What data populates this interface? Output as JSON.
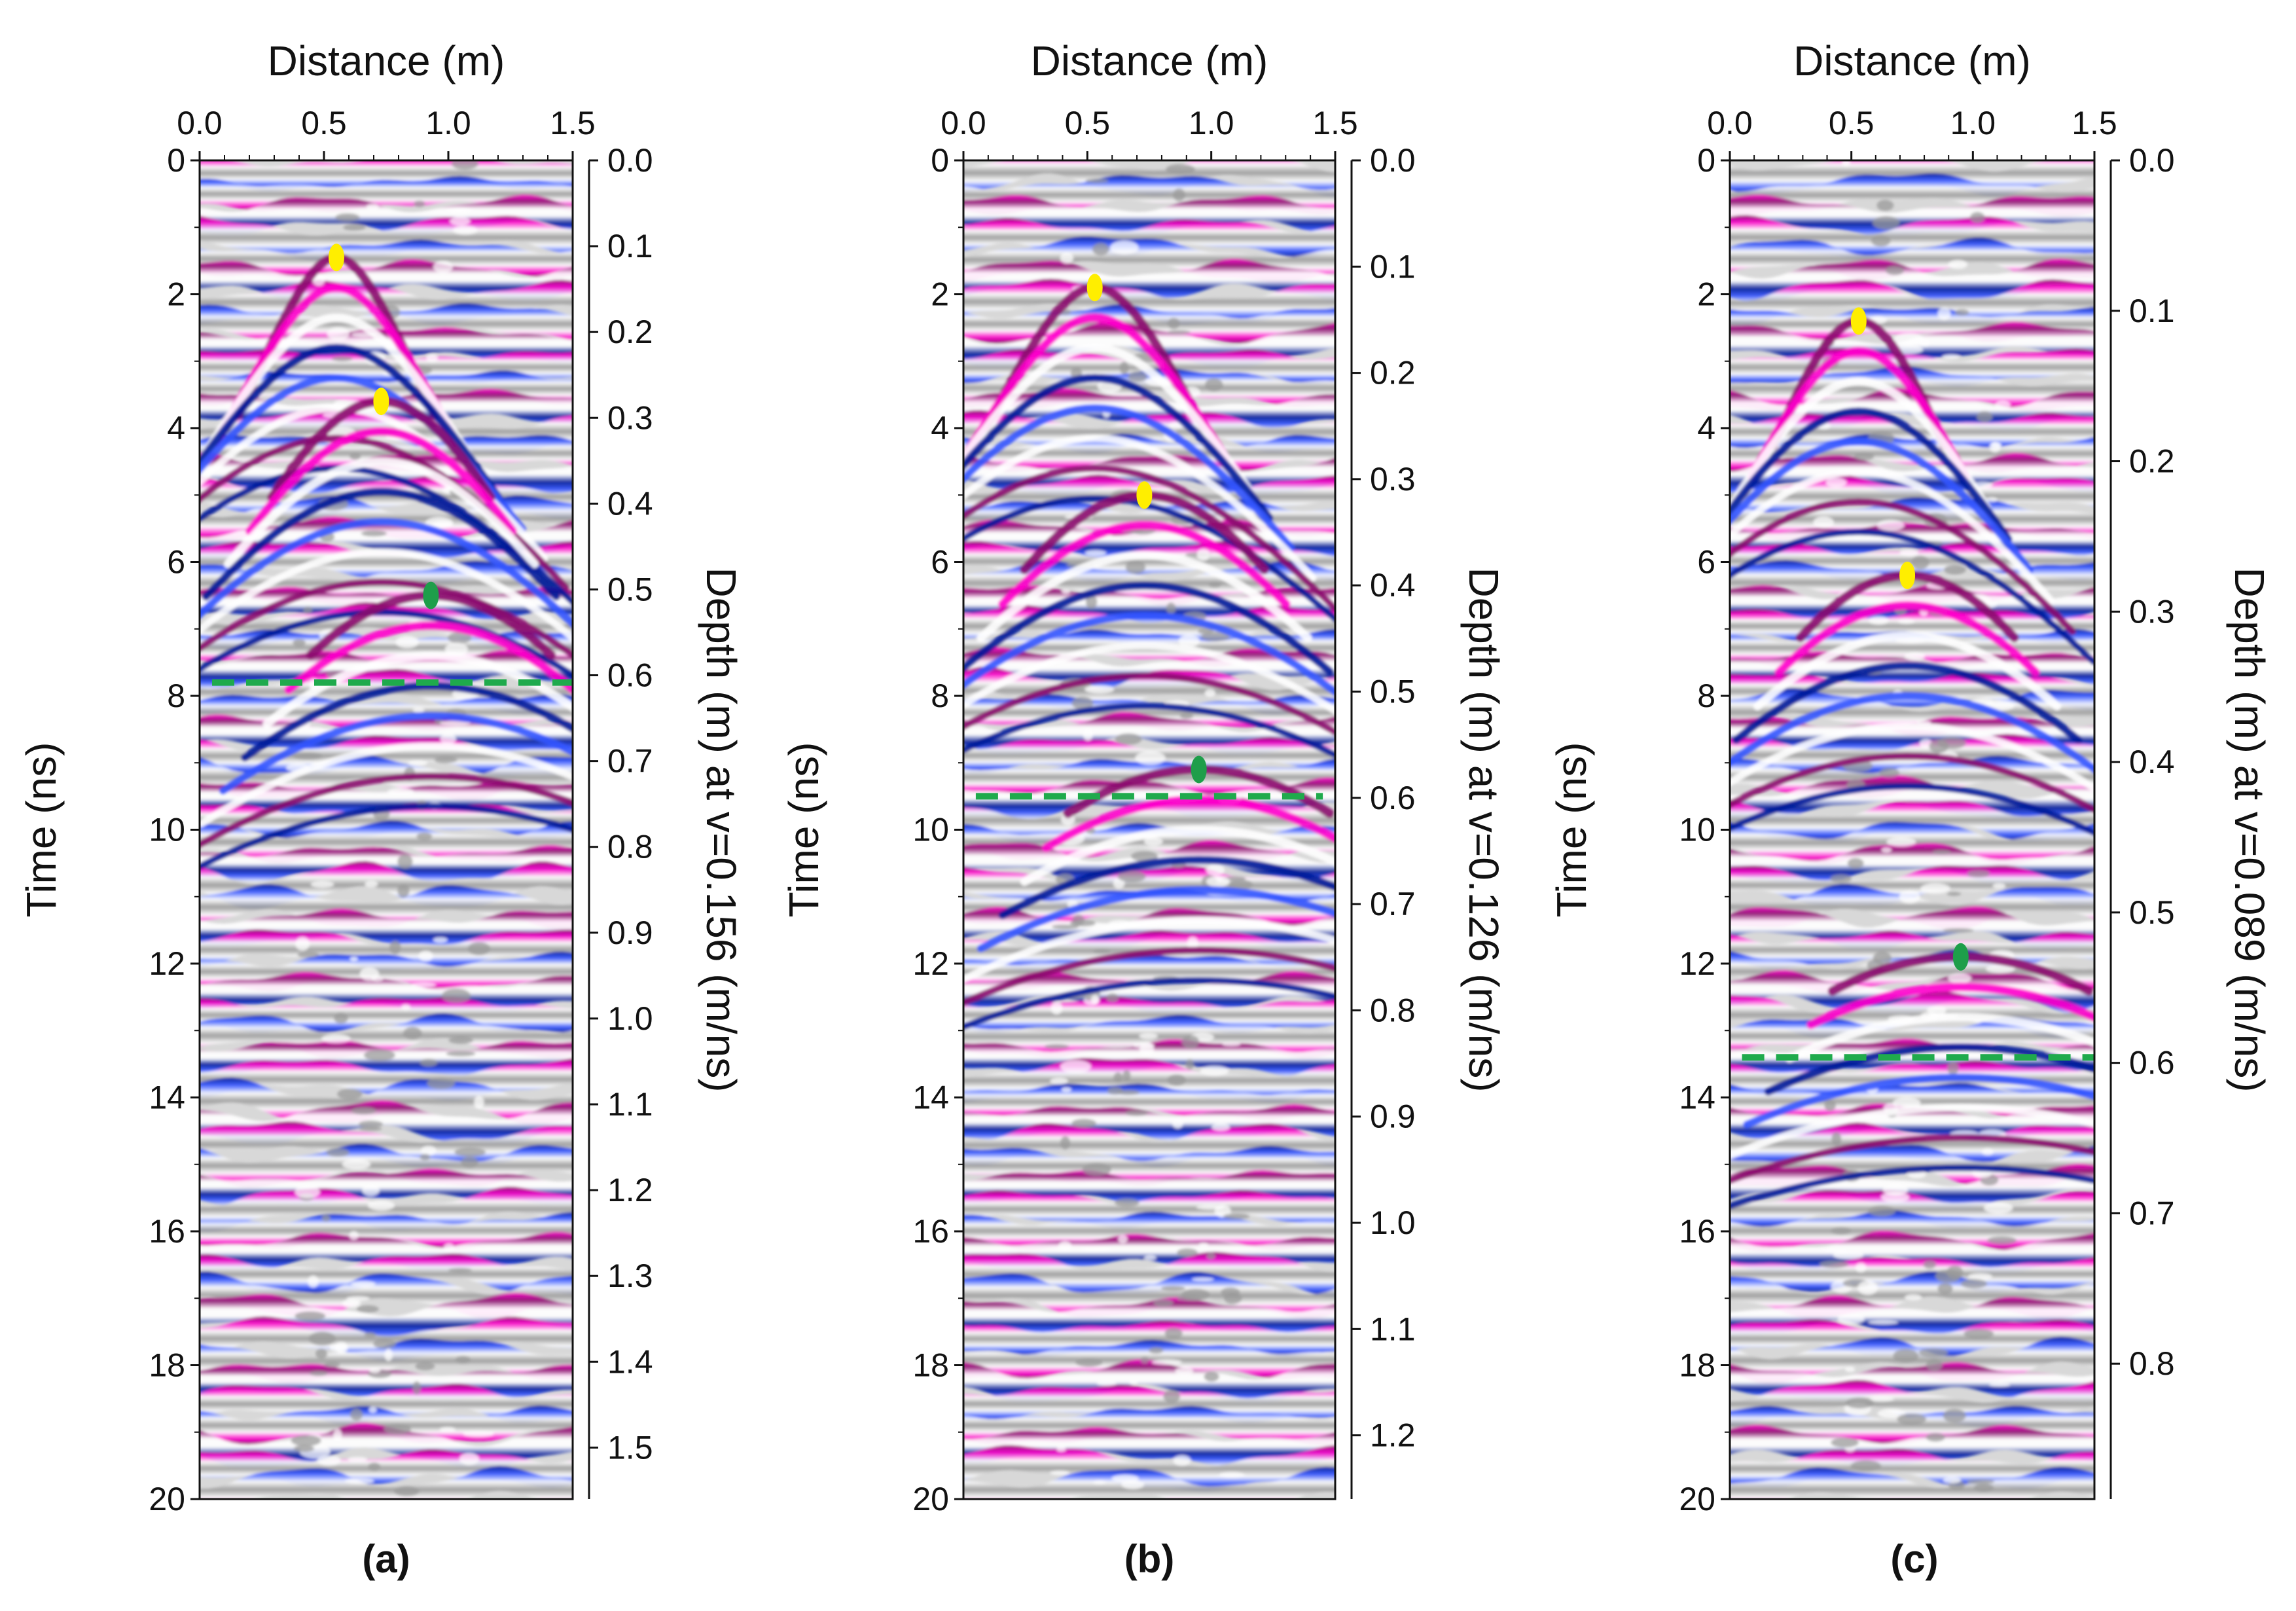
{
  "figure": {
    "colors": {
      "pink": "#ff00cc",
      "purple": "#8b0a6e",
      "blue": "#001a99",
      "light_blue": "#3355ff",
      "white": "#ffffff",
      "gray": "#9a9a9a",
      "marker_yellow": "#ffee00",
      "marker_green": "#1e9e4a",
      "dash_green": "#1faa4c",
      "axis": "#111111"
    }
  },
  "chart_data": [
    {
      "type": "heatmap",
      "panel_label": "(a)",
      "title": "",
      "xlabel": "Distance (m)",
      "ylabel": "Time (ns)",
      "y2label": "Depth (m) at v=0.156 (m/ns)",
      "xlim": [
        0,
        1.5
      ],
      "ylim": [
        0,
        20
      ],
      "x_ticks": [
        "0.0",
        "0.5",
        "1.0",
        "1.5"
      ],
      "y_ticks": [
        "0",
        "2",
        "4",
        "6",
        "8",
        "10",
        "12",
        "14",
        "16",
        "18",
        "20"
      ],
      "depth_ticks": [
        "0.0",
        "0.1",
        "0.2",
        "0.3",
        "0.4",
        "0.5",
        "0.6",
        "0.7",
        "0.8",
        "0.9",
        "1.0",
        "1.1",
        "1.2",
        "1.3",
        "1.4",
        "1.5"
      ],
      "depth_scale_m_per_ns": 0.078,
      "interface_time_ns": 7.8,
      "interface_x_range": [
        0.05,
        1.5
      ],
      "markers": [
        {
          "x": 0.55,
          "t": 1.45,
          "color": "yellow"
        },
        {
          "x": 0.73,
          "t": 3.6,
          "color": "yellow"
        },
        {
          "x": 0.93,
          "t": 6.5,
          "color": "green"
        }
      ],
      "hyperbolas": [
        {
          "x": 0.55,
          "t": 1.45,
          "width": 0.18
        },
        {
          "x": 0.73,
          "t": 3.6,
          "width": 0.2
        },
        {
          "x": 0.93,
          "t": 6.5,
          "width": 0.22
        }
      ]
    },
    {
      "type": "heatmap",
      "panel_label": "(b)",
      "title": "",
      "xlabel": "Distance (m)",
      "ylabel": "Time (ns)",
      "y2label": "Depth (m) at v=0.126 (m/ns)",
      "xlim": [
        0,
        1.5
      ],
      "ylim": [
        0,
        20
      ],
      "x_ticks": [
        "0.0",
        "0.5",
        "1.0",
        "1.5"
      ],
      "y_ticks": [
        "0",
        "2",
        "4",
        "6",
        "8",
        "10",
        "12",
        "14",
        "16",
        "18",
        "20"
      ],
      "depth_ticks": [
        "0.0",
        "0.1",
        "0.2",
        "0.3",
        "0.4",
        "0.5",
        "0.6",
        "0.7",
        "0.8",
        "0.9",
        "1.0",
        "1.1",
        "1.2"
      ],
      "depth_scale_m_per_ns": 0.063,
      "interface_time_ns": 9.5,
      "interface_x_range": [
        0.05,
        1.45
      ],
      "markers": [
        {
          "x": 0.53,
          "t": 1.9,
          "color": "yellow"
        },
        {
          "x": 0.73,
          "t": 5.0,
          "color": "yellow"
        },
        {
          "x": 0.95,
          "t": 9.1,
          "color": "green"
        }
      ],
      "hyperbolas": [
        {
          "x": 0.53,
          "t": 1.9,
          "width": 0.2
        },
        {
          "x": 0.73,
          "t": 5.0,
          "width": 0.22
        },
        {
          "x": 0.95,
          "t": 9.1,
          "width": 0.24
        }
      ]
    },
    {
      "type": "heatmap",
      "panel_label": "(c)",
      "title": "",
      "xlabel": "Distance (m)",
      "ylabel": "Time (ns)",
      "y2label": "Depth (m) at v=0.089 (m/ns)",
      "xlim": [
        0,
        1.5
      ],
      "ylim": [
        0,
        20
      ],
      "x_ticks": [
        "0.0",
        "0.5",
        "1.0",
        "1.5"
      ],
      "y_ticks": [
        "0",
        "2",
        "4",
        "6",
        "8",
        "10",
        "12",
        "14",
        "16",
        "18",
        "20"
      ],
      "depth_ticks": [
        "0.0",
        "0.1",
        "0.2",
        "0.3",
        "0.4",
        "0.5",
        "0.6",
        "0.7",
        "0.8"
      ],
      "depth_scale_m_per_ns": 0.0445,
      "interface_time_ns": 13.4,
      "interface_x_range": [
        0.05,
        1.5
      ],
      "markers": [
        {
          "x": 0.53,
          "t": 2.4,
          "color": "yellow"
        },
        {
          "x": 0.73,
          "t": 6.2,
          "color": "yellow"
        },
        {
          "x": 0.95,
          "t": 11.9,
          "color": "green"
        }
      ],
      "hyperbolas": [
        {
          "x": 0.53,
          "t": 2.4,
          "width": 0.16
        },
        {
          "x": 0.73,
          "t": 6.2,
          "width": 0.2
        },
        {
          "x": 0.95,
          "t": 11.9,
          "width": 0.24
        }
      ]
    }
  ]
}
